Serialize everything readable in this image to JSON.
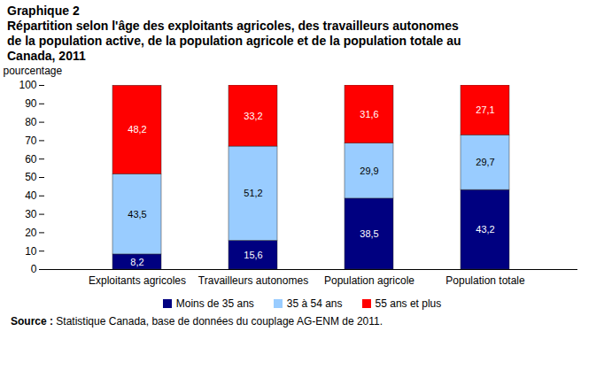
{
  "chart_data": {
    "type": "bar",
    "title": "Graphique 2",
    "subtitle": "Répartition selon l'âge des exploitants agricoles, des travailleurs autonomes de la population active, de la population agricole et de la population totale au Canada, 2011",
    "y_label": "pourcentage",
    "caption": "Source : Statistique Canada, base de données du couplage AG-ENM de 2011.",
    "categories": [
      "Exploitants agricoles",
      "Travailleurs autonomes",
      "Population agricole",
      "Population totale"
    ],
    "series": [
      {
        "name": "Moins de 35 ans",
        "color": "#000080",
        "values": [
          8.2,
          15.6,
          38.5,
          43.2
        ],
        "value_labels": [
          "8,2",
          "15,6",
          "38,5",
          "43,2"
        ]
      },
      {
        "name": "35 à 54 ans",
        "color": "#99ccff",
        "values": [
          43.5,
          51.2,
          29.9,
          29.7
        ],
        "value_labels": [
          "43,5",
          "51,2",
          "29,9",
          "29,7"
        ]
      },
      {
        "name": "55 ans et plus",
        "color": "#ff0000",
        "values": [
          48.2,
          33.2,
          31.6,
          27.1
        ],
        "value_labels": [
          "48,2",
          "33,2",
          "31,6",
          "27,1"
        ]
      }
    ],
    "ylim": [
      0,
      100
    ],
    "yticks": [
      0,
      10,
      20,
      30,
      40,
      50,
      60,
      70,
      80,
      90,
      100
    ],
    "stacked": true,
    "data_labels": true,
    "grid": false,
    "legend": "bottom"
  }
}
